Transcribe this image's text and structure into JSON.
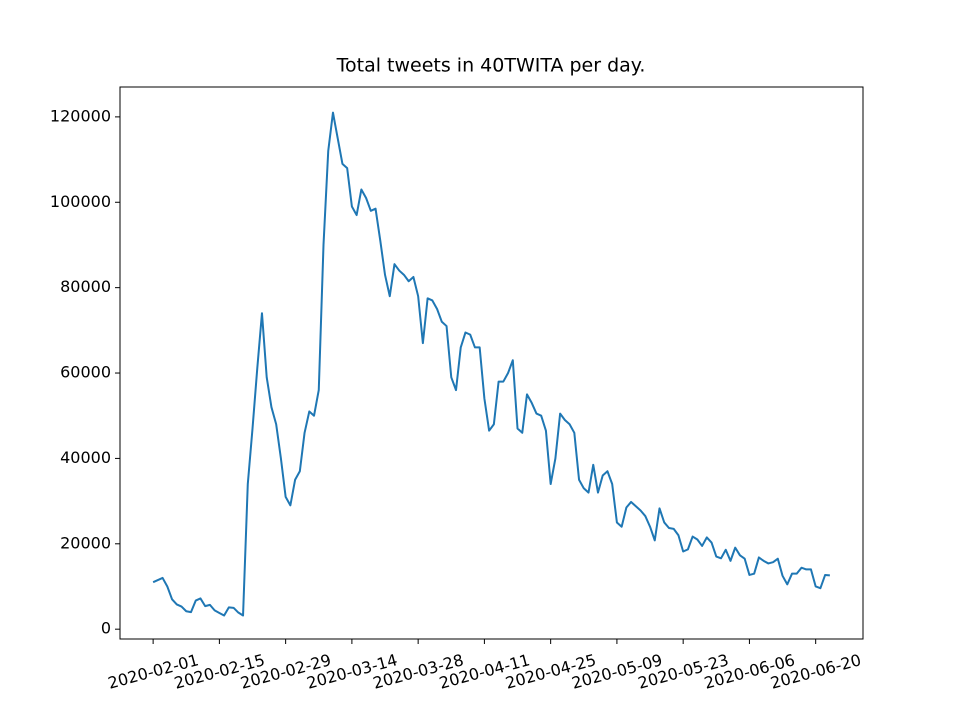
{
  "chart_data": {
    "type": "line",
    "title": "Total tweets in 40TWITA per day.",
    "x": [
      "2020-02-01",
      "2020-02-02",
      "2020-02-03",
      "2020-02-04",
      "2020-02-05",
      "2020-02-06",
      "2020-02-07",
      "2020-02-08",
      "2020-02-09",
      "2020-02-10",
      "2020-02-11",
      "2020-02-12",
      "2020-02-13",
      "2020-02-14",
      "2020-02-15",
      "2020-02-16",
      "2020-02-17",
      "2020-02-18",
      "2020-02-19",
      "2020-02-20",
      "2020-02-21",
      "2020-02-22",
      "2020-02-23",
      "2020-02-24",
      "2020-02-25",
      "2020-02-26",
      "2020-02-27",
      "2020-02-28",
      "2020-02-29",
      "2020-03-01",
      "2020-03-02",
      "2020-03-03",
      "2020-03-04",
      "2020-03-05",
      "2020-03-06",
      "2020-03-07",
      "2020-03-08",
      "2020-03-09",
      "2020-03-10",
      "2020-03-11",
      "2020-03-12",
      "2020-03-13",
      "2020-03-14",
      "2020-03-15",
      "2020-03-16",
      "2020-03-17",
      "2020-03-18",
      "2020-03-19",
      "2020-03-20",
      "2020-03-21",
      "2020-03-22",
      "2020-03-23",
      "2020-03-24",
      "2020-03-25",
      "2020-03-26",
      "2020-03-27",
      "2020-03-28",
      "2020-03-29",
      "2020-03-30",
      "2020-03-31",
      "2020-04-01",
      "2020-04-02",
      "2020-04-03",
      "2020-04-04",
      "2020-04-05",
      "2020-04-06",
      "2020-04-07",
      "2020-04-08",
      "2020-04-09",
      "2020-04-10",
      "2020-04-11",
      "2020-04-12",
      "2020-04-13",
      "2020-04-14",
      "2020-04-15",
      "2020-04-16",
      "2020-04-17",
      "2020-04-18",
      "2020-04-19",
      "2020-04-20",
      "2020-04-21",
      "2020-04-22",
      "2020-04-23",
      "2020-04-24",
      "2020-04-25",
      "2020-04-26",
      "2020-04-27",
      "2020-04-28",
      "2020-04-29",
      "2020-04-30",
      "2020-05-01",
      "2020-05-02",
      "2020-05-03",
      "2020-05-04",
      "2020-05-05",
      "2020-05-06",
      "2020-05-07",
      "2020-05-08",
      "2020-05-09",
      "2020-05-10",
      "2020-05-11",
      "2020-05-12",
      "2020-05-13",
      "2020-05-14",
      "2020-05-15",
      "2020-05-16",
      "2020-05-17",
      "2020-05-18",
      "2020-05-19",
      "2020-05-20",
      "2020-05-21",
      "2020-05-22",
      "2020-05-23",
      "2020-05-24",
      "2020-05-25",
      "2020-05-26",
      "2020-05-27",
      "2020-05-28",
      "2020-05-29",
      "2020-05-30",
      "2020-05-31",
      "2020-06-01",
      "2020-06-02",
      "2020-06-03",
      "2020-06-04",
      "2020-06-05",
      "2020-06-06",
      "2020-06-07",
      "2020-06-08",
      "2020-06-09",
      "2020-06-10",
      "2020-06-11",
      "2020-06-12",
      "2020-06-13",
      "2020-06-14",
      "2020-06-15",
      "2020-06-16",
      "2020-06-17",
      "2020-06-18",
      "2020-06-19",
      "2020-06-20",
      "2020-06-21",
      "2020-06-22",
      "2020-06-23"
    ],
    "series": [
      {
        "color": "#1f77b4",
        "values": [
          11000,
          11500,
          12000,
          10000,
          7000,
          5800,
          5300,
          4200,
          4000,
          6700,
          7200,
          5400,
          5700,
          4400,
          3800,
          3200,
          5100,
          5000,
          3900,
          3200,
          34000,
          47000,
          61000,
          74000,
          59000,
          52000,
          48000,
          40000,
          31000,
          29000,
          35000,
          37000,
          46000,
          51000,
          50000,
          56000,
          90000,
          112000,
          121000,
          115000,
          109000,
          108000,
          99000,
          97000,
          103000,
          101000,
          98000,
          98500,
          91000,
          83000,
          78000,
          85500,
          84000,
          83000,
          81500,
          82500,
          78000,
          67000,
          77500,
          77000,
          75000,
          72000,
          71000,
          59000,
          56000,
          66000,
          69500,
          69000,
          66000,
          66000,
          54000,
          46500,
          48000,
          58000,
          58000,
          60000,
          63000,
          47000,
          46000,
          55000,
          53000,
          50500,
          50000,
          46500,
          34000,
          40000,
          50500,
          49000,
          48000,
          46000,
          35000,
          33000,
          32000,
          38500,
          32000,
          36000,
          37000,
          34000,
          25000,
          24000,
          28500,
          29800,
          28800,
          27800,
          26500,
          24000,
          20800,
          28300,
          25000,
          23700,
          23500,
          22000,
          18200,
          18700,
          21700,
          21000,
          19500,
          21500,
          20300,
          17000,
          16600,
          18600,
          16000,
          19100,
          17300,
          16500,
          12700,
          13000,
          16800,
          16000,
          15400,
          15700,
          16500,
          12500,
          10500,
          13000,
          13000,
          14400,
          14000,
          14000,
          10000,
          9600,
          12700,
          12600
        ]
      }
    ],
    "xlim": [
      "2020-01-25",
      "2020-06-30"
    ],
    "xticks": [
      "2020-02-01",
      "2020-02-15",
      "2020-02-29",
      "2020-03-14",
      "2020-03-28",
      "2020-04-11",
      "2020-04-25",
      "2020-05-09",
      "2020-05-23",
      "2020-06-06",
      "2020-06-20"
    ],
    "ylim": [
      -2300,
      127000
    ],
    "yticks": [
      0,
      20000,
      40000,
      60000,
      80000,
      100000,
      120000
    ]
  }
}
